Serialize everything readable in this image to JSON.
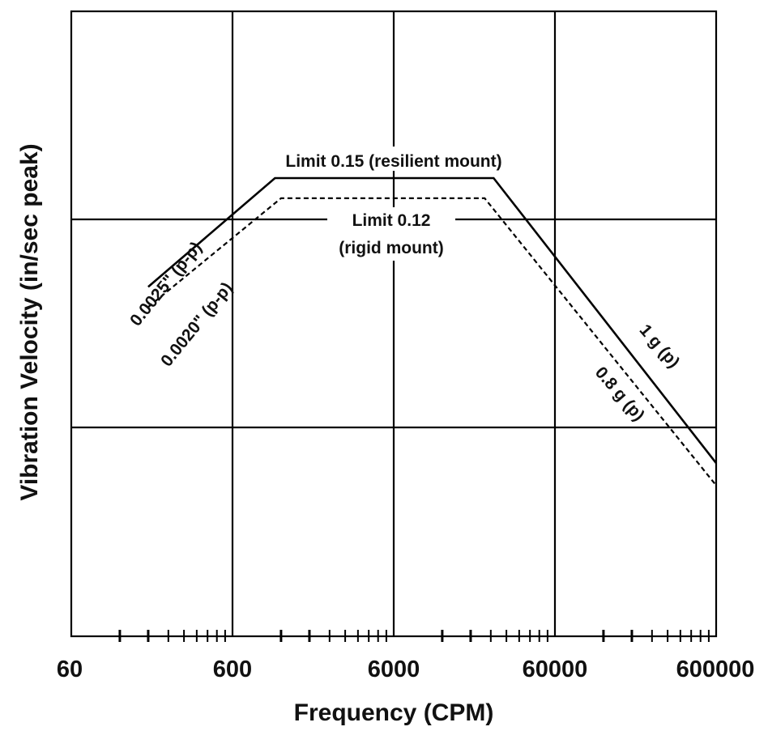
{
  "chart_data": {
    "type": "line",
    "xscale": "log",
    "yscale": "log",
    "xlabel": "Frequency (CPM)",
    "ylabel": "Vibration Velocity (in/sec peak)",
    "xlim": [
      60,
      600000
    ],
    "x_ticks": [
      "60",
      "600",
      "6000",
      "60000",
      "600000"
    ],
    "y_decades": 3,
    "grid": true,
    "series": [
      {
        "name": "resilient mount",
        "style": "solid",
        "points": [
          [
            180,
            0.045
          ],
          [
            1100,
            0.15
          ],
          [
            25000,
            0.15
          ],
          [
            600000,
            0.0064
          ]
        ]
      },
      {
        "name": "rigid mount",
        "style": "dashed",
        "points": [
          [
            180,
            0.036
          ],
          [
            1200,
            0.12
          ],
          [
            22000,
            0.12
          ],
          [
            600000,
            0.005
          ]
        ]
      }
    ],
    "annotations": [
      {
        "id": "limit_resilient",
        "text": "Limit 0.15 (resilient mount)"
      },
      {
        "id": "limit_rigid_1",
        "text": "Limit 0.12"
      },
      {
        "id": "limit_rigid_2",
        "text": "(rigid mount)"
      },
      {
        "id": "disp_resilient",
        "text": "0.0025\" (p-p)"
      },
      {
        "id": "disp_rigid",
        "text": "0.0020\" (p-p)"
      },
      {
        "id": "acc_resilient",
        "text": "1 g (p)"
      },
      {
        "id": "acc_rigid",
        "text": "0.8 g (p)"
      }
    ]
  }
}
